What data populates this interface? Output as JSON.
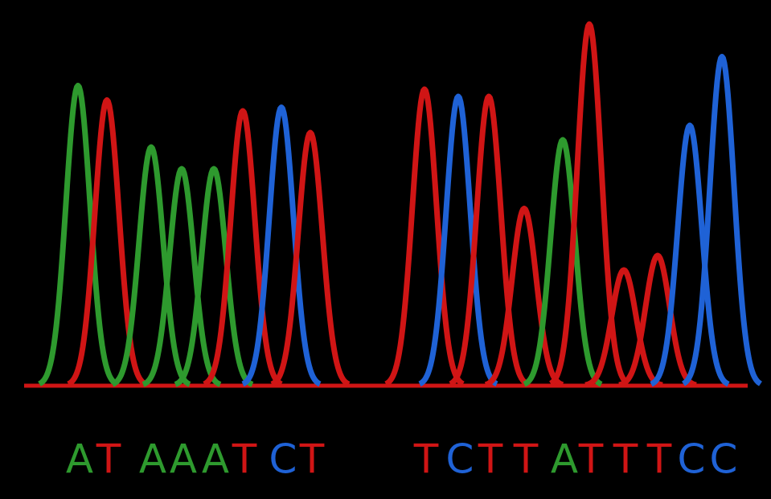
{
  "chart_data": {
    "type": "chromatogram",
    "categories": [
      "A",
      "T",
      "A",
      "A",
      "A",
      "T",
      "C",
      "T",
      "T",
      "C",
      "T",
      "T",
      "A",
      "T",
      "T",
      "T",
      "C",
      "C"
    ],
    "x": [
      97,
      133,
      188,
      226,
      266,
      302,
      350,
      386,
      528,
      570,
      608,
      652,
      700,
      733,
      776,
      818,
      858,
      898
    ],
    "values": [
      83,
      79,
      66,
      60,
      60,
      76,
      77,
      70,
      82,
      80,
      80,
      49,
      68,
      100,
      32,
      36,
      72,
      91
    ],
    "colors": {
      "A": "#2e9a2e",
      "T": "#d01515",
      "C": "#1f62d6"
    },
    "xlim": [
      0,
      959
    ],
    "ylim": [
      0,
      100
    ]
  }
}
